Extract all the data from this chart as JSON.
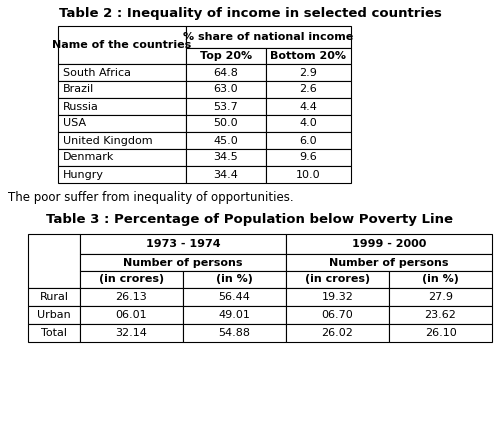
{
  "title1": "Table 2 : Inequality of income in selected countries",
  "table1_data": [
    [
      "South Africa",
      "64.8",
      "2.9"
    ],
    [
      "Brazil",
      "63.0",
      "2.6"
    ],
    [
      "Russia",
      "53.7",
      "4.4"
    ],
    [
      "USA",
      "50.0",
      "4.0"
    ],
    [
      "United Kingdom",
      "45.0",
      "6.0"
    ],
    [
      "Denmark",
      "34.5",
      "9.6"
    ],
    [
      "Hungry",
      "34.4",
      "10.0"
    ]
  ],
  "middle_text": "The poor suffer from inequality of opportunities.",
  "title2": "Table 3 : Percentage of Population below Poverty Line",
  "table2_data": [
    [
      "Rural",
      "26.13",
      "56.44",
      "19.32",
      "27.9"
    ],
    [
      "Urban",
      "06.01",
      "49.01",
      "06.70",
      "23.62"
    ],
    [
      "Total",
      "32.14",
      "54.88",
      "26.02",
      "26.10"
    ]
  ],
  "bg_color": "#ffffff",
  "title_fontsize": 9.5,
  "cell_fontsize": 8.0
}
